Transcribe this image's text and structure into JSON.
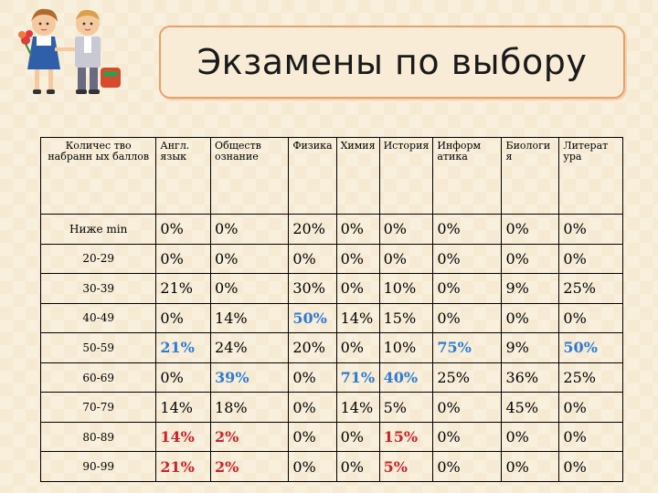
{
  "title": "Экзамены по выбору",
  "table": {
    "headers": [
      "Количес тво набранн ых баллов",
      "Англ. язык",
      "Обществ ознание",
      "Физика",
      "Химия",
      "История",
      "Информ атика",
      "Биологи я",
      "Литерат ура"
    ],
    "rows": [
      {
        "label": "Ниже min",
        "cells": [
          {
            "v": "0%",
            "c": "n"
          },
          {
            "v": "0%",
            "c": "n"
          },
          {
            "v": "20%",
            "c": "n"
          },
          {
            "v": "0%",
            "c": "n"
          },
          {
            "v": "0%",
            "c": "n"
          },
          {
            "v": "0%",
            "c": "n"
          },
          {
            "v": "0%",
            "c": "n"
          },
          {
            "v": "0%",
            "c": "n"
          }
        ]
      },
      {
        "label": "20-29",
        "cells": [
          {
            "v": "0%",
            "c": "n"
          },
          {
            "v": "0%",
            "c": "n"
          },
          {
            "v": "0%",
            "c": "n"
          },
          {
            "v": "0%",
            "c": "n"
          },
          {
            "v": "0%",
            "c": "n"
          },
          {
            "v": "0%",
            "c": "n"
          },
          {
            "v": "0%",
            "c": "n"
          },
          {
            "v": "0%",
            "c": "n"
          }
        ]
      },
      {
        "label": "30-39",
        "cells": [
          {
            "v": "21%",
            "c": "n"
          },
          {
            "v": "0%",
            "c": "n"
          },
          {
            "v": "30%",
            "c": "n"
          },
          {
            "v": "0%",
            "c": "n"
          },
          {
            "v": "10%",
            "c": "n"
          },
          {
            "v": "0%",
            "c": "n"
          },
          {
            "v": "9%",
            "c": "n"
          },
          {
            "v": "25%",
            "c": "n"
          }
        ]
      },
      {
        "label": "40-49",
        "cells": [
          {
            "v": "0%",
            "c": "n"
          },
          {
            "v": "14%",
            "c": "n"
          },
          {
            "v": "50%",
            "c": "hl"
          },
          {
            "v": "14%",
            "c": "n"
          },
          {
            "v": "15%",
            "c": "n"
          },
          {
            "v": "0%",
            "c": "n"
          },
          {
            "v": "0%",
            "c": "n"
          },
          {
            "v": "0%",
            "c": "n"
          }
        ]
      },
      {
        "label": "50-59",
        "cells": [
          {
            "v": "21%",
            "c": "hl"
          },
          {
            "v": "24%",
            "c": "n"
          },
          {
            "v": "20%",
            "c": "n"
          },
          {
            "v": "0%",
            "c": "n"
          },
          {
            "v": "10%",
            "c": "n"
          },
          {
            "v": "75%",
            "c": "hl"
          },
          {
            "v": "9%",
            "c": "n"
          },
          {
            "v": "50%",
            "c": "hl"
          }
        ]
      },
      {
        "label": "60-69",
        "cells": [
          {
            "v": "0%",
            "c": "n"
          },
          {
            "v": "39%",
            "c": "hl"
          },
          {
            "v": "0%",
            "c": "n"
          },
          {
            "v": "71%",
            "c": "hl"
          },
          {
            "v": "40%",
            "c": "hl"
          },
          {
            "v": "25%",
            "c": "n"
          },
          {
            "v": "36%",
            "c": "n"
          },
          {
            "v": "25%",
            "c": "n"
          }
        ]
      },
      {
        "label": "70-79",
        "cells": [
          {
            "v": "14%",
            "c": "n"
          },
          {
            "v": "18%",
            "c": "n"
          },
          {
            "v": "0%",
            "c": "n"
          },
          {
            "v": "14%",
            "c": "n"
          },
          {
            "v": "5%",
            "c": "n"
          },
          {
            "v": "0%",
            "c": "n"
          },
          {
            "v": "45%",
            "c": "n"
          },
          {
            "v": "0%",
            "c": "n"
          }
        ]
      },
      {
        "label": "80-89",
        "cells": [
          {
            "v": "14%",
            "c": "red"
          },
          {
            "v": "2%",
            "c": "red"
          },
          {
            "v": "0%",
            "c": "n"
          },
          {
            "v": "0%",
            "c": "n"
          },
          {
            "v": "15%",
            "c": "red"
          },
          {
            "v": "0%",
            "c": "n"
          },
          {
            "v": "0%",
            "c": "n"
          },
          {
            "v": "0%",
            "c": "n"
          }
        ]
      },
      {
        "label": "90-99",
        "cells": [
          {
            "v": "21%",
            "c": "red"
          },
          {
            "v": "2%",
            "c": "red"
          },
          {
            "v": "0%",
            "c": "n"
          },
          {
            "v": "0%",
            "c": "n"
          },
          {
            "v": "5%",
            "c": "red"
          },
          {
            "v": "0%",
            "c": "n"
          },
          {
            "v": "0%",
            "c": "n"
          },
          {
            "v": "0%",
            "c": "n"
          }
        ]
      }
    ]
  },
  "colors": {
    "highlight_blue": "#2f7bd1",
    "highlight_red": "#c8232a"
  },
  "illustration": "schoolchildren-illustration"
}
